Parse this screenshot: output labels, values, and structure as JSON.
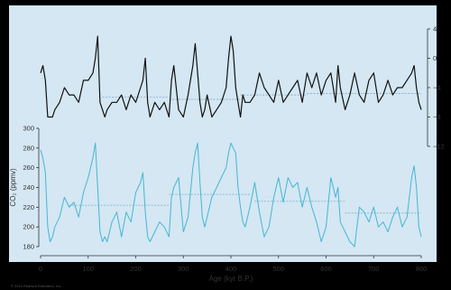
{
  "chart_data": {
    "type": "line",
    "xlabel": "Age (kyr B.P.)",
    "x_ticks": [
      "0",
      "100",
      "200",
      "300",
      "400",
      "500",
      "600",
      "700",
      "800"
    ],
    "xlim": [
      0,
      800
    ],
    "temperature_ticks": [
      "4",
      "0",
      "−4",
      "−8",
      "−12"
    ],
    "temperature_ylim": [
      -13,
      6
    ],
    "co2_ylabel": "CO₂ (ppmv)",
    "co2_ticks": [
      "300",
      "280",
      "260",
      "240",
      "220",
      "200",
      "180"
    ],
    "co2_ylim": [
      170,
      305
    ],
    "credit": "© 2014 Pearson Education, Inc.",
    "colors": {
      "panel_bg": "#d4e7f3",
      "temperature": "#111111",
      "co2": "#45b6d4",
      "mean_line": "#8ab6cc",
      "frame": "#000000"
    },
    "series": [
      {
        "x": [
          0,
          5,
          10,
          15,
          20,
          25,
          30,
          40,
          50,
          60,
          70,
          80,
          90,
          100,
          110,
          115,
          120,
          125,
          130,
          135,
          140,
          150,
          160,
          170,
          180,
          190,
          200,
          210,
          215,
          220,
          225,
          230,
          240,
          250,
          260,
          270,
          275,
          280,
          290,
          300,
          310,
          320,
          325,
          330,
          335,
          340,
          345,
          350,
          360,
          370,
          380,
          390,
          395,
          400,
          405,
          410,
          415,
          420,
          425,
          430,
          440,
          450,
          460,
          470,
          480,
          490,
          500,
          510,
          520,
          530,
          540,
          550,
          560,
          570,
          580,
          590,
          600,
          610,
          620,
          625,
          630,
          640,
          650,
          660,
          670,
          680,
          690,
          700,
          710,
          720,
          730,
          740,
          750,
          760,
          770,
          780,
          785,
          790,
          795,
          800
        ],
        "values": [
          -2,
          -1,
          -3,
          -8,
          -8,
          -8,
          -7,
          -6,
          -4,
          -5,
          -5,
          -6,
          -3,
          -3,
          -2,
          0,
          3,
          -6,
          -7,
          -8,
          -7,
          -6,
          -6,
          -5,
          -7,
          -5,
          -6,
          -4,
          -3,
          0,
          -6,
          -8,
          -6,
          -7,
          -6,
          -8,
          -3,
          -1,
          -7,
          -8,
          -5,
          -1,
          2,
          -2,
          -6,
          -8,
          -7,
          -5,
          -8,
          -7,
          -6,
          -4,
          0,
          3,
          1,
          -4,
          -6,
          -8,
          -5,
          -6,
          -6,
          -5,
          -2,
          -4,
          -5,
          -6,
          -3,
          -6,
          -5,
          -4,
          -3,
          -6,
          -2,
          -4,
          -2,
          -5,
          -3,
          -2,
          -6,
          -1,
          -4,
          -7,
          -5,
          -2,
          -5,
          -6,
          -3,
          -2,
          -6,
          -5,
          -3,
          -5,
          -4,
          -4,
          -3,
          -2,
          -1,
          -4,
          -6,
          -7
        ]
      },
      {
        "x": [
          0,
          5,
          10,
          15,
          20,
          25,
          30,
          40,
          50,
          60,
          70,
          80,
          90,
          100,
          110,
          115,
          120,
          125,
          130,
          135,
          140,
          150,
          160,
          170,
          180,
          190,
          200,
          210,
          215,
          220,
          225,
          230,
          240,
          250,
          260,
          270,
          275,
          280,
          290,
          300,
          310,
          320,
          325,
          330,
          335,
          340,
          345,
          350,
          360,
          370,
          380,
          390,
          395,
          400,
          405,
          410,
          415,
          420,
          425,
          430,
          440,
          450,
          460,
          470,
          480,
          490,
          500,
          510,
          520,
          530,
          540,
          550,
          560,
          570,
          580,
          590,
          600,
          610,
          620,
          625,
          630,
          640,
          650,
          660,
          670,
          680,
          690,
          700,
          710,
          720,
          730,
          740,
          750,
          760,
          770,
          780,
          785,
          790,
          795,
          800
        ],
        "values": [
          278,
          270,
          255,
          200,
          185,
          190,
          200,
          210,
          230,
          220,
          225,
          210,
          235,
          250,
          270,
          285,
          240,
          195,
          185,
          190,
          185,
          205,
          215,
          190,
          215,
          205,
          235,
          245,
          255,
          215,
          190,
          185,
          195,
          205,
          200,
          190,
          230,
          240,
          250,
          195,
          210,
          260,
          275,
          285,
          245,
          210,
          200,
          210,
          230,
          240,
          250,
          260,
          275,
          285,
          280,
          275,
          240,
          220,
          205,
          200,
          220,
          245,
          215,
          190,
          200,
          230,
          250,
          225,
          250,
          240,
          245,
          220,
          240,
          220,
          205,
          185,
          200,
          250,
          230,
          240,
          205,
          195,
          185,
          180,
          220,
          215,
          205,
          220,
          200,
          205,
          195,
          210,
          220,
          200,
          210,
          250,
          262,
          240,
          200,
          190
        ]
      }
    ],
    "mean_lines": [
      {
        "series": 0,
        "segments": [
          [
            130,
            270,
            -5.3
          ],
          [
            270,
            420,
            -5.6
          ],
          [
            420,
            560,
            -5.0
          ],
          [
            560,
            800,
            -4.8
          ]
        ]
      },
      {
        "series": 1,
        "segments": [
          [
            60,
            270,
            222
          ],
          [
            270,
            440,
            233
          ],
          [
            450,
            640,
            226
          ],
          [
            640,
            800,
            214
          ]
        ]
      }
    ]
  }
}
